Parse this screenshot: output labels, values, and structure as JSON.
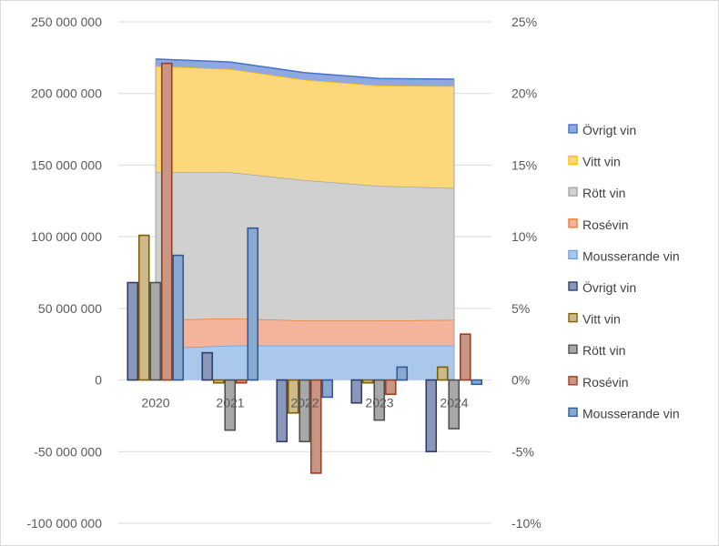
{
  "chart_data": {
    "type": "area+bar",
    "title": "",
    "categories": [
      "2020",
      "2021",
      "2022",
      "2023",
      "2024"
    ],
    "left_axis": {
      "min": -100000000,
      "max": 250000000,
      "step": 50000000,
      "tick_labels": [
        "250 000 000",
        "200 000 000",
        "150 000 000",
        "100 000 000",
        "50 000 000",
        "0",
        "-50 000 000",
        "-100 000 000"
      ]
    },
    "right_axis": {
      "min": -10,
      "max": 25,
      "step": 5,
      "tick_labels": [
        "25%",
        "20%",
        "15%",
        "10%",
        "5%",
        "0%",
        "-5%",
        "-10%"
      ]
    },
    "area_series": [
      {
        "name": "Mousserande vin",
        "values": [
          22000000,
          24000000,
          24000000,
          24000000,
          24000000
        ],
        "color": "#a9c8ec",
        "stroke": "#6f9fd8"
      },
      {
        "name": "Rosévin",
        "values": [
          20000000,
          19000000,
          17500000,
          17500000,
          18000000
        ],
        "color": "#f4b39b",
        "stroke": "#ed7d31"
      },
      {
        "name": "Rött vin",
        "values": [
          103000000,
          102000000,
          98000000,
          94000000,
          92000000
        ],
        "color": "#d0d0d0",
        "stroke": "#a5a5a5"
      },
      {
        "name": "Vitt vin",
        "values": [
          74000000,
          72000000,
          70000000,
          70000000,
          71000000
        ],
        "color": "#fdd87a",
        "stroke": "#ffc000"
      },
      {
        "name": "Övrigt vin",
        "values": [
          5000000,
          5000000,
          5000000,
          5000000,
          5000000
        ],
        "color": "#8fa9e0",
        "stroke": "#4472c4"
      }
    ],
    "bar_series": [
      {
        "name": "Övrigt vin",
        "values": [
          6.8,
          1.9,
          -4.3,
          -1.6,
          -5.0
        ],
        "color": "#8a97b8",
        "stroke": "#2f3e6e"
      },
      {
        "name": "Vitt vin",
        "values": [
          10.1,
          -0.2,
          -2.3,
          -0.2,
          0.9
        ],
        "color": "#cdb98a",
        "stroke": "#7f6000"
      },
      {
        "name": "Rött vin",
        "values": [
          6.8,
          -3.5,
          -4.3,
          -2.8,
          -3.4
        ],
        "color": "#a8a8a8",
        "stroke": "#505050"
      },
      {
        "name": "Rosévin",
        "values": [
          22.1,
          -0.2,
          -6.5,
          -1.0,
          3.2
        ],
        "color": "#c99585",
        "stroke": "#9c3f1f"
      },
      {
        "name": "Mousserande vin",
        "values": [
          8.7,
          10.6,
          -1.2,
          0.9,
          -0.3
        ],
        "color": "#8aa9cf",
        "stroke": "#2e5c99"
      }
    ],
    "legend": {
      "position": "right",
      "entries": [
        {
          "label": "Övrigt vin",
          "color": "#8fa9e0",
          "stroke": "#4472c4"
        },
        {
          "label": "Vitt vin",
          "color": "#fdd87a",
          "stroke": "#ffc000"
        },
        {
          "label": "Rött vin",
          "color": "#d0d0d0",
          "stroke": "#a5a5a5"
        },
        {
          "label": "Rosévin",
          "color": "#f4b39b",
          "stroke": "#ed7d31"
        },
        {
          "label": "Mousserande vin",
          "color": "#a9c8ec",
          "stroke": "#6f9fd8"
        },
        {
          "label": "Övrigt vin",
          "color": "#8a97b8",
          "stroke": "#2f3e6e"
        },
        {
          "label": "Vitt vin",
          "color": "#cdb98a",
          "stroke": "#7f6000"
        },
        {
          "label": "Rött vin",
          "color": "#a8a8a8",
          "stroke": "#505050"
        },
        {
          "label": "Rosévin",
          "color": "#c99585",
          "stroke": "#9c3f1f"
        },
        {
          "label": "Mousserande vin",
          "color": "#8aa9cf",
          "stroke": "#2e5c99"
        }
      ]
    },
    "grid": true
  }
}
